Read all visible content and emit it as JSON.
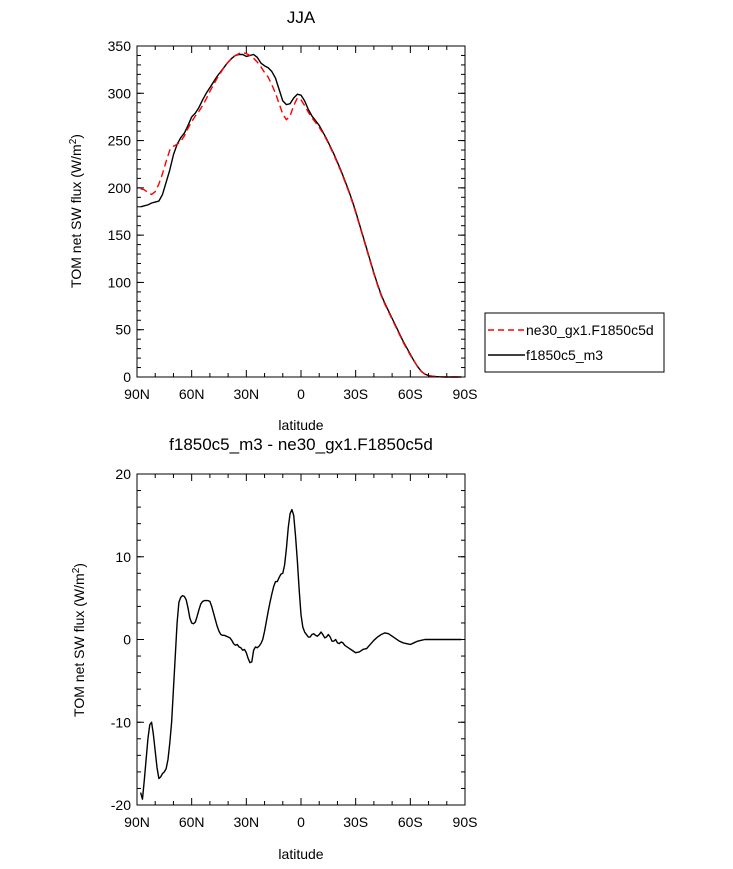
{
  "chart_data": [
    {
      "type": "line",
      "title": "JJA",
      "xlabel": "latitude",
      "ylabel": "TOM net SW flux (W/m²)",
      "ylabel_main": "TOM net SW flux (W/m",
      "ylabel_sup": "2",
      "ylabel_end": ")",
      "xlim": [
        90,
        -90
      ],
      "ylim": [
        0,
        350
      ],
      "xticks": [
        90,
        60,
        30,
        0,
        -30,
        -60,
        -90
      ],
      "xtick_labels": [
        "90N",
        "60N",
        "30N",
        "0",
        "30S",
        "60S",
        "90S"
      ],
      "yticks": [
        0,
        50,
        100,
        150,
        200,
        250,
        300,
        350
      ],
      "ytick_labels": [
        "0",
        "50",
        "100",
        "150",
        "200",
        "250",
        "300",
        "350"
      ],
      "legend": {
        "placement": "right",
        "entries": [
          {
            "label": "ne30_gx1.F1850c5d",
            "color": "#ff0000",
            "dash": true
          },
          {
            "label": "f1850c5_m3",
            "color": "#000000",
            "dash": false
          }
        ]
      },
      "series": [
        {
          "name": "ne30_gx1.F1850c5d",
          "color": "#ff0000",
          "dash": true,
          "x": [
            88,
            86,
            84,
            82,
            80,
            78,
            76,
            74,
            72,
            70,
            68,
            66,
            64,
            62,
            60,
            58,
            56,
            54,
            52,
            50,
            48,
            46,
            44,
            42,
            40,
            38,
            36,
            34,
            32,
            30,
            28,
            26,
            24,
            22,
            20,
            18,
            16,
            14,
            12,
            10,
            8,
            6,
            4,
            2,
            0,
            -2,
            -4,
            -6,
            -8,
            -10,
            -12,
            -14,
            -16,
            -18,
            -20,
            -22,
            -24,
            -26,
            -28,
            -30,
            -32,
            -34,
            -36,
            -38,
            -40,
            -42,
            -44,
            -46,
            -48,
            -50,
            -52,
            -54,
            -56,
            -58,
            -60,
            -62,
            -64,
            -66,
            -68,
            -70,
            -72,
            -74,
            -76,
            -78,
            -80,
            -82,
            -84,
            -86,
            -88
          ],
          "y": [
            199,
            198,
            195,
            193,
            196,
            204,
            215,
            228,
            240,
            244,
            246,
            249,
            255,
            263,
            270,
            276,
            281,
            287,
            294,
            302,
            309,
            316,
            322,
            328,
            333,
            337,
            340,
            342,
            343,
            342,
            340,
            337,
            333,
            328,
            322,
            317,
            309,
            300,
            289,
            278,
            272,
            276,
            287,
            295,
            293,
            287,
            280,
            274,
            269,
            264,
            258,
            251,
            243,
            235,
            226,
            217,
            207,
            197,
            186,
            174,
            161,
            148,
            135,
            122,
            109,
            97,
            86,
            77,
            69,
            61,
            53,
            45,
            37,
            30,
            23,
            17,
            11,
            6,
            3,
            1.5,
            0.8,
            0.4,
            0.2,
            0.1,
            0,
            0,
            0,
            0,
            0
          ]
        },
        {
          "name": "f1850c5_m3",
          "color": "#000000",
          "dash": false,
          "x": [
            88,
            86,
            84,
            82,
            80,
            78,
            76,
            74,
            72,
            70,
            68,
            66,
            64,
            62,
            60,
            58,
            56,
            54,
            52,
            50,
            48,
            46,
            44,
            42,
            40,
            38,
            36,
            34,
            32,
            30,
            28,
            26,
            24,
            22,
            20,
            18,
            16,
            14,
            12,
            10,
            8,
            6,
            4,
            2,
            0,
            -2,
            -4,
            -6,
            -8,
            -10,
            -12,
            -14,
            -16,
            -18,
            -20,
            -22,
            -24,
            -26,
            -28,
            -30,
            -32,
            -34,
            -36,
            -38,
            -40,
            -42,
            -44,
            -46,
            -48,
            -50,
            -52,
            -54,
            -56,
            -58,
            -60,
            -62,
            -64,
            -66,
            -68,
            -70,
            -72,
            -74,
            -76,
            -78,
            -80,
            -82,
            -84,
            -86,
            -88
          ],
          "y": [
            180,
            181,
            182,
            184,
            185,
            186,
            193,
            206,
            219,
            235,
            246,
            253,
            258,
            266,
            275,
            279,
            285,
            293,
            300,
            306,
            312,
            318,
            323,
            328,
            333,
            337,
            340,
            341,
            341,
            339,
            340,
            341,
            338,
            332,
            329,
            327,
            323,
            316,
            304,
            292,
            288,
            289,
            295,
            299,
            298,
            292,
            283,
            276,
            271,
            266,
            259,
            252,
            244,
            236,
            227,
            218,
            208,
            198,
            187,
            175,
            162,
            149,
            136,
            123,
            110,
            98,
            87,
            78,
            70,
            62,
            54,
            46,
            38,
            31,
            24,
            17,
            11,
            6,
            3,
            1.5,
            0.8,
            0.4,
            0.2,
            0.1,
            0,
            0,
            0,
            0,
            0
          ]
        }
      ]
    },
    {
      "type": "line",
      "title": "f1850c5_m3 - ne30_gx1.F1850c5d",
      "xlabel": "latitude",
      "ylabel": "TOM net SW flux (W/m²)",
      "ylabel_main": "TOM net SW flux (W/m",
      "ylabel_sup": "2",
      "ylabel_end": ")",
      "xlim": [
        90,
        -90
      ],
      "ylim": [
        -20,
        20
      ],
      "xticks": [
        90,
        60,
        30,
        0,
        -30,
        -60,
        -90
      ],
      "xtick_labels": [
        "90N",
        "60N",
        "30N",
        "0",
        "30S",
        "60S",
        "90S"
      ],
      "yticks": [
        -20,
        -10,
        0,
        10,
        20
      ],
      "ytick_labels": [
        "-20",
        "-10",
        "0",
        "10",
        "20"
      ],
      "series": [
        {
          "name": "f1850c5_m3 - ne30_gx1.F1850c5d",
          "color": "#000000",
          "dash": false,
          "x": [
            88,
            87,
            86,
            85,
            84,
            83,
            82,
            81,
            80,
            79,
            78,
            77,
            76,
            75,
            74,
            73,
            72,
            71,
            70,
            69,
            68,
            67,
            66,
            65,
            64,
            63,
            62,
            61,
            60,
            59,
            58,
            57,
            56,
            55,
            54,
            53,
            52,
            51,
            50,
            49,
            48,
            47,
            46,
            45,
            44,
            43,
            42,
            41,
            40,
            39,
            38,
            37,
            36,
            35,
            34,
            33,
            32,
            31,
            30,
            29,
            28,
            27,
            26,
            25,
            24,
            23,
            22,
            21,
            20,
            19,
            18,
            17,
            16,
            15,
            14,
            13,
            12,
            11,
            10,
            9,
            8,
            7,
            6,
            5,
            4,
            3,
            2,
            1,
            0,
            -1,
            -2,
            -3,
            -4,
            -5,
            -6,
            -7,
            -8,
            -9,
            -10,
            -11,
            -12,
            -13,
            -14,
            -15,
            -16,
            -17,
            -18,
            -19,
            -20,
            -21,
            -22,
            -23,
            -24,
            -26,
            -28,
            -30,
            -32,
            -34,
            -36,
            -38,
            -40,
            -42,
            -44,
            -46,
            -48,
            -50,
            -52,
            -54,
            -56,
            -58,
            -60,
            -62,
            -64,
            -66,
            -68,
            -70,
            -72,
            -74,
            -76,
            -78,
            -80,
            -82,
            -84,
            -86,
            -88
          ],
          "y": [
            -18.5,
            -19.3,
            -17,
            -14.5,
            -12,
            -10.3,
            -10,
            -11.5,
            -13.5,
            -15.5,
            -16.8,
            -16.6,
            -16.2,
            -16,
            -15.6,
            -14.5,
            -12.5,
            -10,
            -6,
            -2,
            2,
            4.5,
            5.1,
            5.3,
            5.2,
            4.8,
            3.8,
            2.6,
            2,
            1.9,
            2.1,
            2.8,
            3.6,
            4.3,
            4.6,
            4.7,
            4.7,
            4.7,
            4.6,
            4,
            3.2,
            2.4,
            1.6,
            1,
            0.6,
            0.5,
            0.5,
            0.4,
            0.3,
            0.2,
            -0.1,
            -0.5,
            -0.7,
            -0.6,
            -0.9,
            -1,
            -1.3,
            -1.2,
            -1.6,
            -2.3,
            -2.8,
            -2.7,
            -1.3,
            -0.9,
            -1,
            -0.8,
            -0.5,
            0,
            1,
            2.2,
            3.4,
            4.5,
            5.5,
            6.4,
            7,
            7,
            7.5,
            7.9,
            8,
            9,
            11,
            13.5,
            15.2,
            15.7,
            15,
            12.5,
            9.5,
            6,
            3,
            1.5,
            0.9,
            0.6,
            0.3,
            0.3,
            0.6,
            0.7,
            0.5,
            0.4,
            0.6,
            0.9,
            0.6,
            0.2,
            0.3,
            0.6,
            0.3,
            -0.2,
            -0.2,
            0,
            -0.4,
            -0.5,
            -0.3,
            -0.4,
            -0.7,
            -1,
            -1.3,
            -1.6,
            -1.5,
            -1.2,
            -1.1,
            -0.6,
            -0.1,
            0.3,
            0.6,
            0.8,
            0.7,
            0.4,
            0.1,
            -0.2,
            -0.4,
            -0.5,
            -0.6,
            -0.4,
            -0.2,
            -0.1,
            0,
            0,
            0,
            0,
            0,
            0,
            0,
            0,
            0,
            0,
            0
          ]
        }
      ]
    }
  ]
}
